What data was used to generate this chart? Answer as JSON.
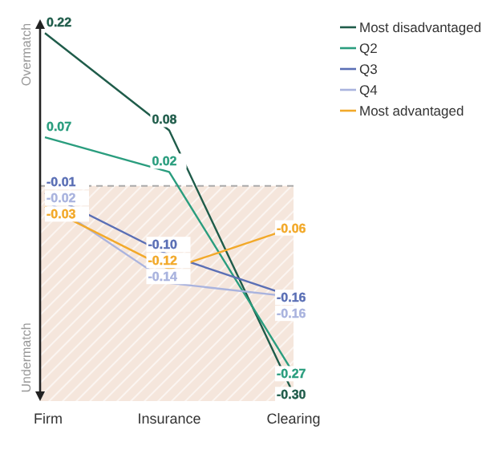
{
  "chart_data": {
    "type": "line",
    "categories": [
      "Firm",
      "Insurance",
      "Clearing"
    ],
    "series": [
      {
        "name": "Most disadvantaged",
        "color": "#1f5c4a",
        "values": [
          0.22,
          0.08,
          -0.3
        ],
        "value_labels": [
          "0.22",
          "0.08",
          "-0.30"
        ]
      },
      {
        "name": "Q2",
        "color": "#2a9d7e",
        "values": [
          0.07,
          0.02,
          -0.27
        ],
        "value_labels": [
          "0.07",
          "0.02",
          "-0.27"
        ]
      },
      {
        "name": "Q3",
        "color": "#5a6fb5",
        "values": [
          -0.01,
          -0.1,
          -0.16
        ],
        "value_labels": [
          "-0.01",
          "-0.10",
          "-0.16"
        ]
      },
      {
        "name": "Q4",
        "color": "#a9b3de",
        "values": [
          -0.02,
          -0.14,
          -0.16
        ],
        "value_labels": [
          "-0.02",
          "-0.14",
          "-0.16"
        ]
      },
      {
        "name": "Most advantaged",
        "color": "#f2a92a",
        "values": [
          -0.03,
          -0.12,
          -0.06
        ],
        "value_labels": [
          "-0.03",
          "-0.12",
          "-0.06"
        ]
      }
    ],
    "ylim": [
      -0.31,
      0.24
    ],
    "tick_labels": "x",
    "legend": "top right",
    "line_style": "solid",
    "ref_lines": [
      {
        "axis": "y",
        "value": 0,
        "color": "#aaaaaa",
        "line_style": "dashed"
      }
    ],
    "bands": [
      {
        "axis": "y",
        "from": -0.31,
        "to": 0,
        "color": "#f5e6dc"
      }
    ],
    "annotations": [
      "Overmatch",
      "Undermatch"
    ]
  }
}
